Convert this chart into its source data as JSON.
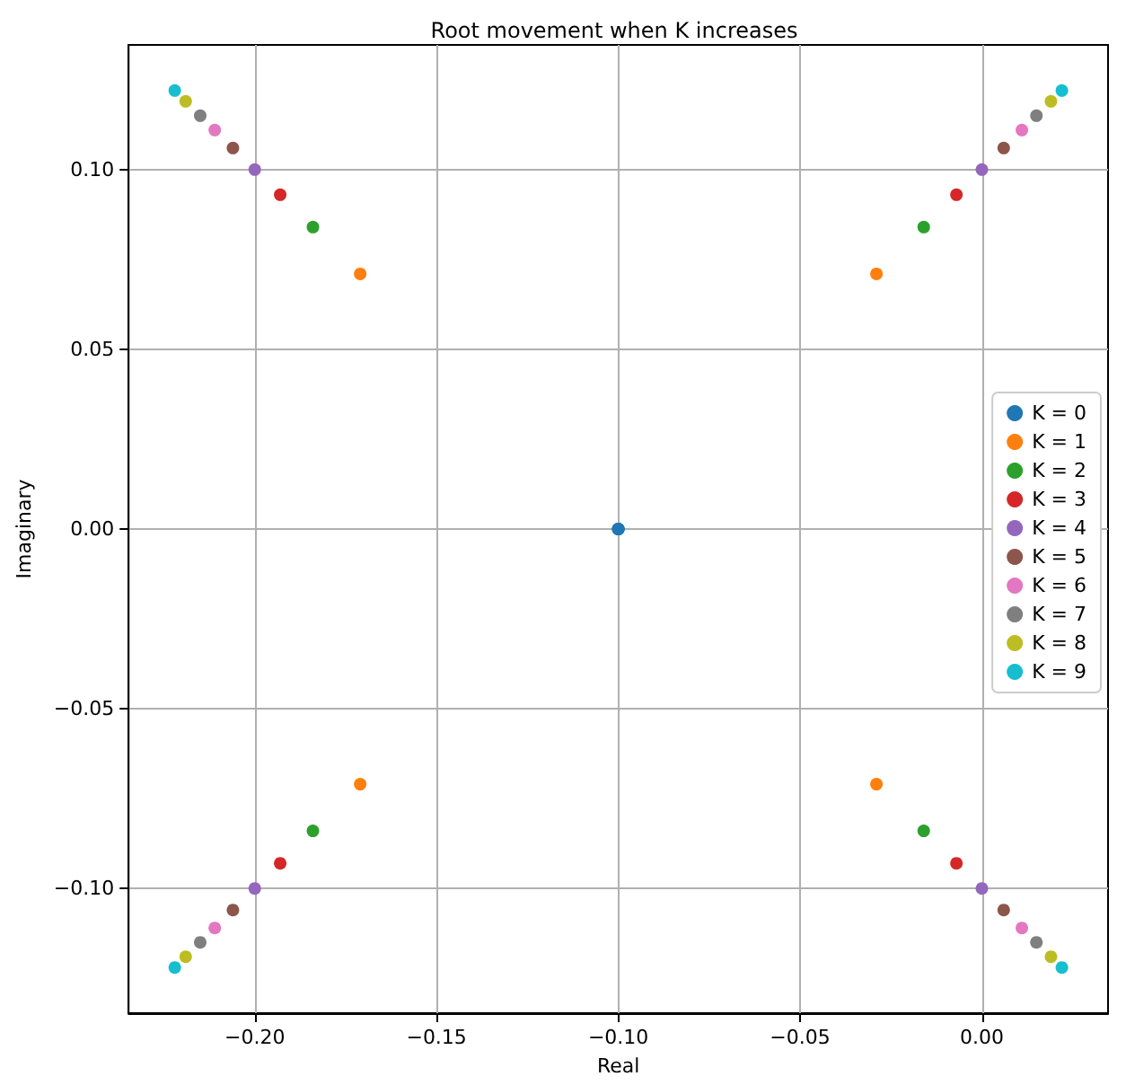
{
  "chart_data": {
    "type": "scatter",
    "title": "Root movement when K increases",
    "xlabel": "Real",
    "ylabel": "Imaginary",
    "xlim": [
      -0.2347,
      0.0347
    ],
    "ylim": [
      -0.1347,
      0.1347
    ],
    "xticks": [
      {
        "value": -0.2,
        "label": "−0.20"
      },
      {
        "value": -0.15,
        "label": "−0.15"
      },
      {
        "value": -0.1,
        "label": "−0.10"
      },
      {
        "value": -0.05,
        "label": "−0.05"
      },
      {
        "value": 0,
        "label": "0.00"
      }
    ],
    "yticks": [
      {
        "value": -0.1,
        "label": "−0.10"
      },
      {
        "value": -0.05,
        "label": "−0.05"
      },
      {
        "value": 0,
        "label": "0.00"
      },
      {
        "value": 0.05,
        "label": "0.05"
      },
      {
        "value": 0.1,
        "label": "0.10"
      }
    ],
    "grid": true,
    "legend": "right",
    "marker": "circle",
    "series": [
      {
        "name": "K = 0",
        "color": "#1f77b4",
        "x": [
          -0.1,
          -0.1,
          -0.1,
          -0.1
        ],
        "values": [
          0,
          0,
          0,
          0
        ]
      },
      {
        "name": "K = 1",
        "color": "#ff7f0e",
        "x": [
          -0.171,
          -0.171,
          -0.029,
          -0.029
        ],
        "values": [
          0.071,
          -0.071,
          0.071,
          -0.071
        ]
      },
      {
        "name": "K = 2",
        "color": "#2ca02c",
        "x": [
          -0.184,
          -0.184,
          -0.016,
          -0.016
        ],
        "values": [
          0.084,
          -0.084,
          0.084,
          -0.084
        ]
      },
      {
        "name": "K = 3",
        "color": "#d62728",
        "x": [
          -0.193,
          -0.193,
          -0.007,
          -0.007
        ],
        "values": [
          0.093,
          -0.093,
          0.093,
          -0.093
        ]
      },
      {
        "name": "K = 4",
        "color": "#9467bd",
        "x": [
          -0.2,
          -0.2,
          0,
          0
        ],
        "values": [
          0.1,
          -0.1,
          0.1,
          -0.1
        ]
      },
      {
        "name": "K = 5",
        "color": "#8c564b",
        "x": [
          -0.206,
          -0.206,
          0.006,
          0.006
        ],
        "values": [
          0.106,
          -0.106,
          0.106,
          -0.106
        ]
      },
      {
        "name": "K = 6",
        "color": "#e377c2",
        "x": [
          -0.211,
          -0.211,
          0.011,
          0.011
        ],
        "values": [
          0.111,
          -0.111,
          0.111,
          -0.111
        ]
      },
      {
        "name": "K = 7",
        "color": "#7f7f7f",
        "x": [
          -0.215,
          -0.215,
          0.015,
          0.015
        ],
        "values": [
          0.115,
          -0.115,
          0.115,
          -0.115
        ]
      },
      {
        "name": "K = 8",
        "color": "#bcbd22",
        "x": [
          -0.219,
          -0.219,
          0.019,
          0.019
        ],
        "values": [
          0.119,
          -0.119,
          0.119,
          -0.119
        ]
      },
      {
        "name": "K = 9",
        "color": "#17becf",
        "x": [
          -0.222,
          -0.222,
          0.022,
          0.022
        ],
        "values": [
          0.122,
          -0.122,
          0.122,
          -0.122
        ]
      }
    ]
  }
}
